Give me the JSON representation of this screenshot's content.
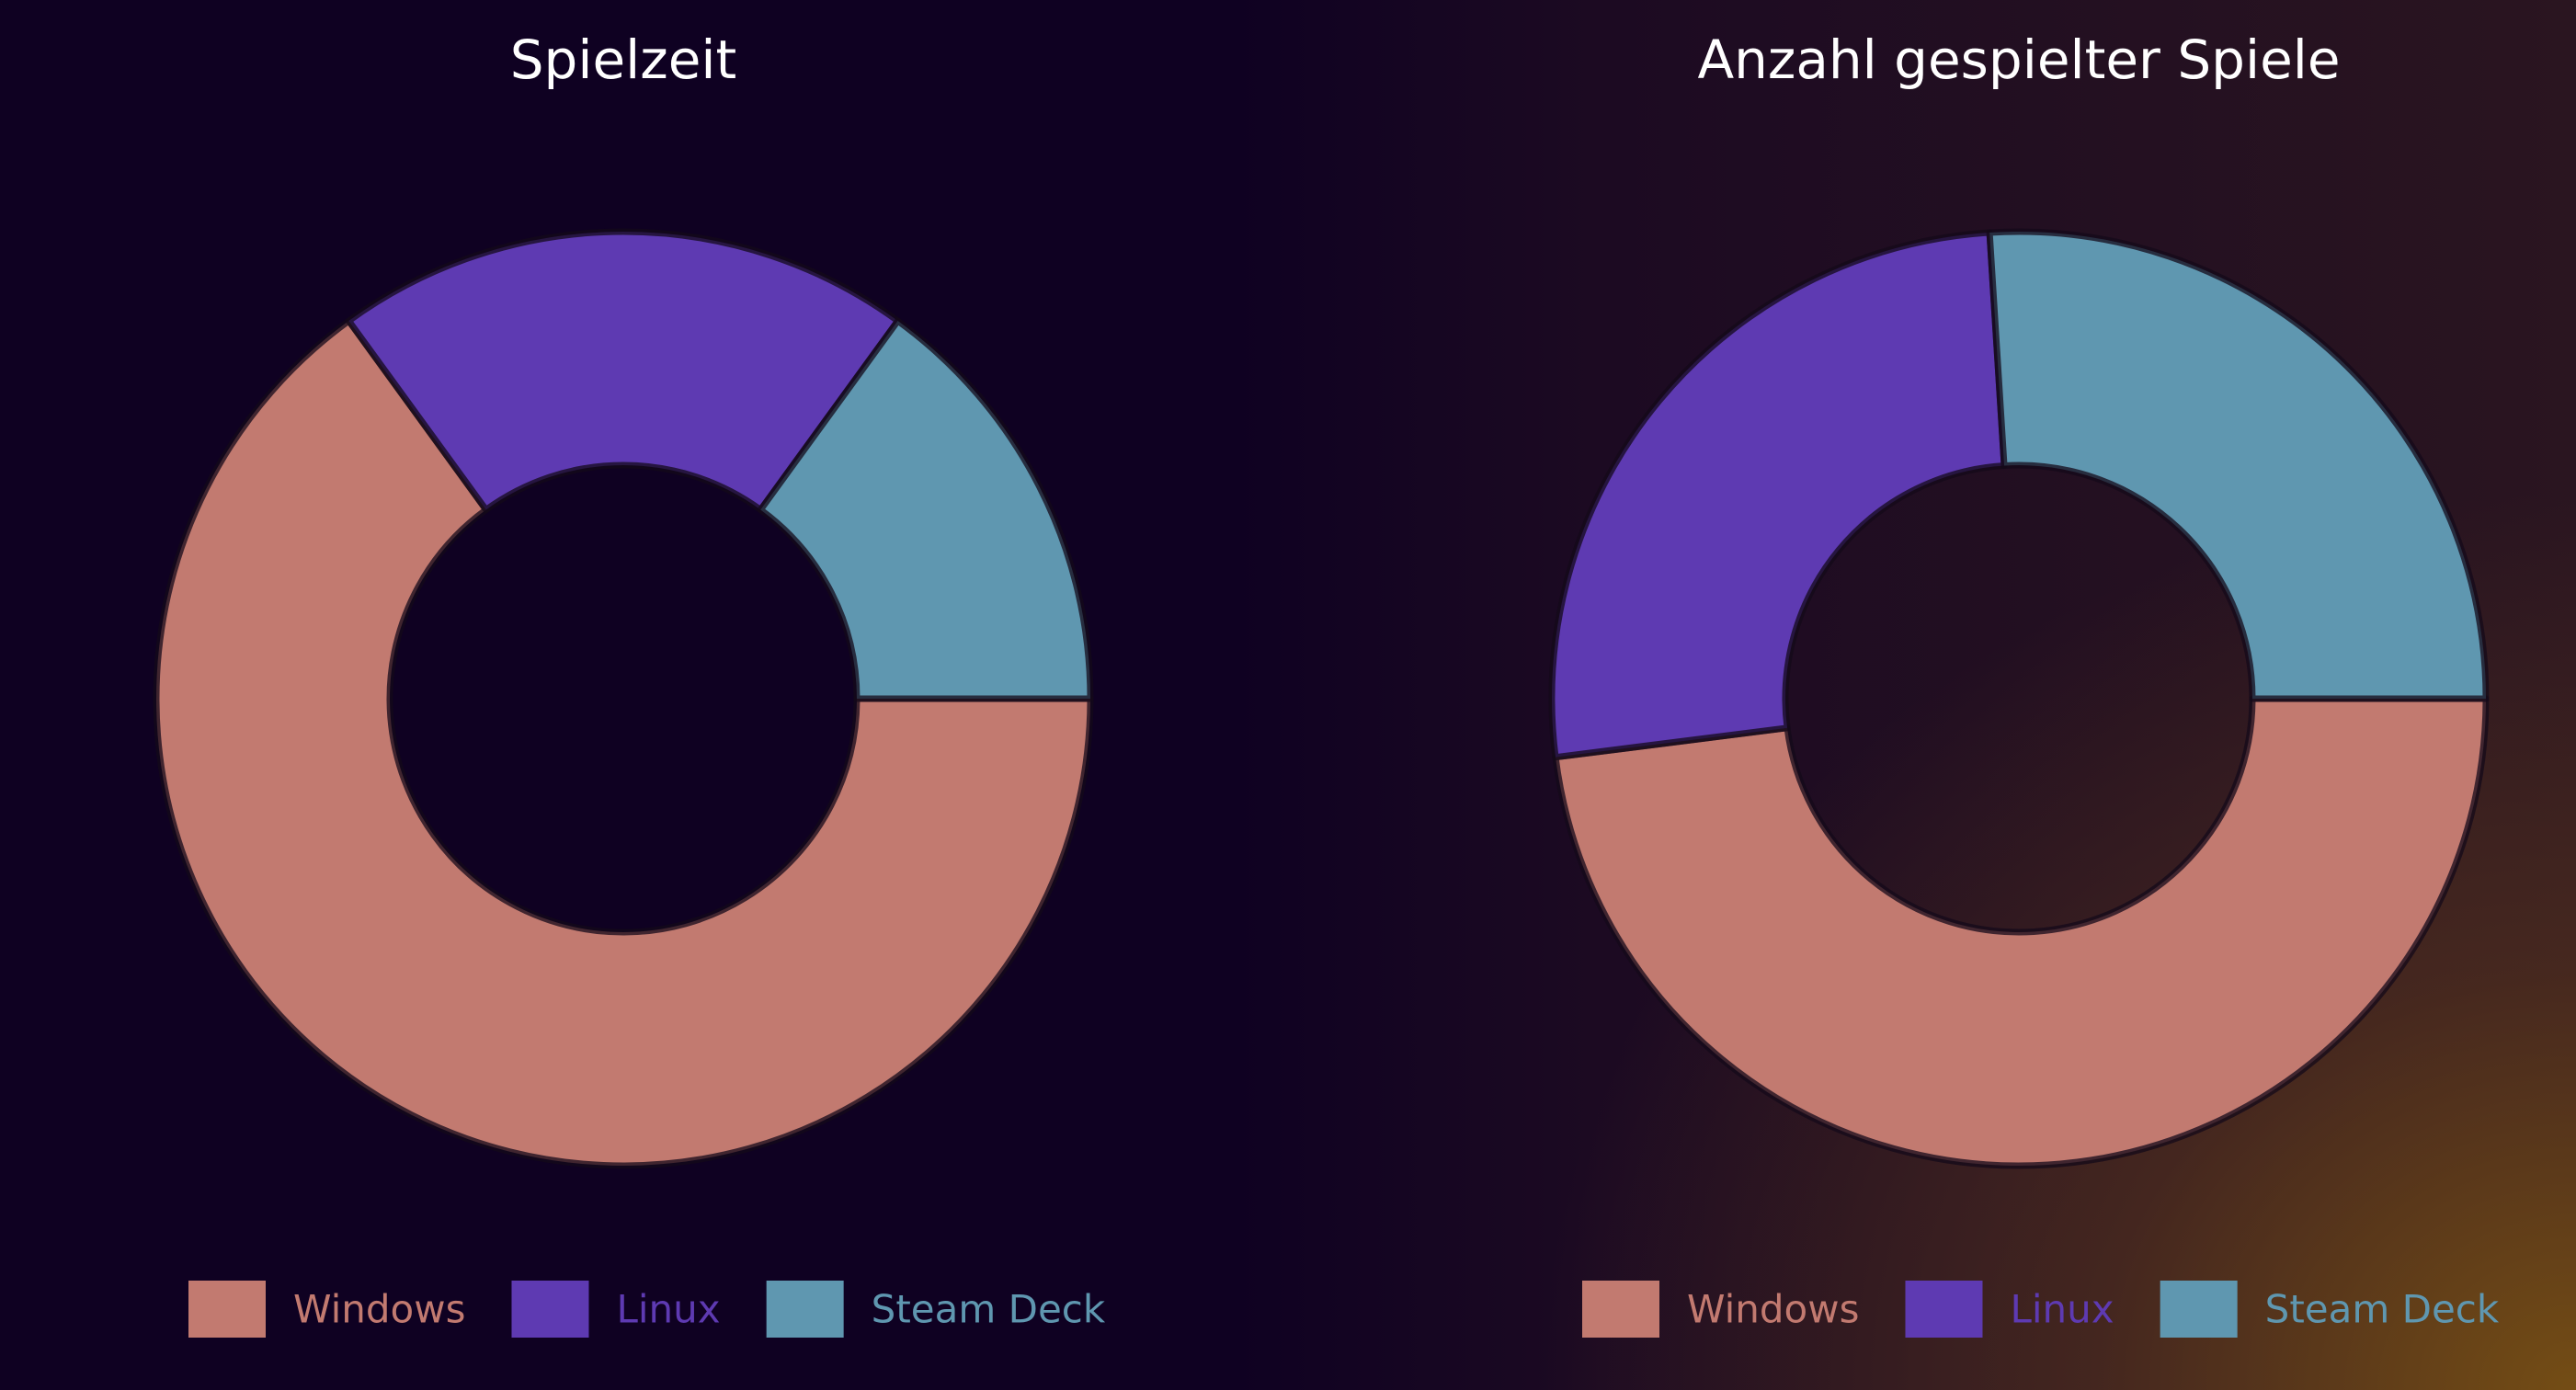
{
  "chart_data": [
    {
      "type": "pie",
      "donut": true,
      "title": "Spielzeit",
      "categories": [
        "Windows",
        "Linux",
        "Steam Deck"
      ],
      "values": [
        65,
        20,
        15
      ],
      "colors": [
        "#c27a70",
        "#5e3ab2",
        "#5f97b0"
      ],
      "legend_position": "bottom"
    },
    {
      "type": "pie",
      "donut": true,
      "title": "Anzahl gespielter Spiele",
      "categories": [
        "Windows",
        "Linux",
        "Steam Deck"
      ],
      "values": [
        48,
        26,
        26
      ],
      "colors": [
        "#c27a70",
        "#5e3ab2",
        "#5f97b0"
      ],
      "legend_position": "bottom"
    }
  ]
}
